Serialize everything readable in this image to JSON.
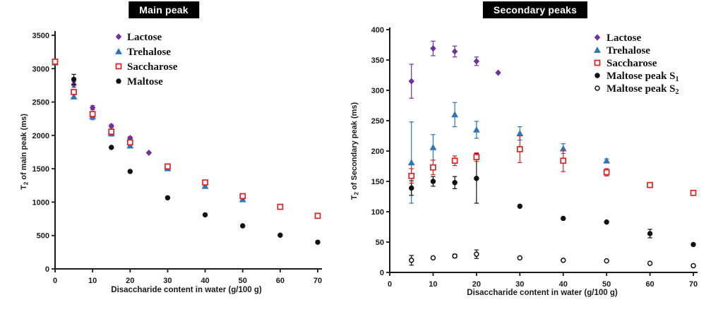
{
  "colors": {
    "lactose": "#7030a0",
    "trehalose": "#2e75b6",
    "saccharose": "#e02020",
    "maltose": "#111111",
    "axis": "#1a1a1a",
    "title_bg": "#000000",
    "title_fg": "#ffffff"
  },
  "chart_data": [
    {
      "type": "scatter",
      "id": "main-peak",
      "title": "Main peak",
      "xlabel": "Disaccharide content in water (g/100 g)",
      "ylabel": {
        "pre": "T",
        "sub": "2",
        "post": " of main peak (ms)"
      },
      "xlim": [
        0,
        70
      ],
      "ylim": [
        0,
        3500
      ],
      "xticks": [
        0,
        10,
        20,
        30,
        40,
        50,
        60,
        70
      ],
      "yticks": [
        0,
        500,
        1000,
        1500,
        2000,
        2500,
        3000,
        3500
      ],
      "legend_position": "upper-center-left",
      "grid": false,
      "series": [
        {
          "label": "Lactose",
          "label_sub": "",
          "marker": "diamond",
          "color": "lactose",
          "points": [
            {
              "x": 0,
              "y": 3100
            },
            {
              "x": 5,
              "y": 2760,
              "err": 40
            },
            {
              "x": 10,
              "y": 2415,
              "err": 30
            },
            {
              "x": 15,
              "y": 2140,
              "err": 25
            },
            {
              "x": 20,
              "y": 1960,
              "err": 20
            },
            {
              "x": 25,
              "y": 1740
            }
          ]
        },
        {
          "label": "Trehalose",
          "label_sub": "",
          "marker": "triangle",
          "color": "trehalose",
          "points": [
            {
              "x": 0,
              "y": 3090
            },
            {
              "x": 5,
              "y": 2580,
              "err": 30
            },
            {
              "x": 10,
              "y": 2285,
              "err": 50
            },
            {
              "x": 15,
              "y": 2030,
              "err": 40
            },
            {
              "x": 20,
              "y": 1845,
              "err": 25
            },
            {
              "x": 30,
              "y": 1505,
              "err": 15
            },
            {
              "x": 40,
              "y": 1240,
              "err": 15
            },
            {
              "x": 50,
              "y": 1040,
              "err": 15
            }
          ]
        },
        {
          "label": "Saccharose",
          "label_sub": "",
          "marker": "square-open",
          "color": "saccharose",
          "points": [
            {
              "x": 0,
              "y": 3105
            },
            {
              "x": 5,
              "y": 2650,
              "err": 25
            },
            {
              "x": 10,
              "y": 2320,
              "err": 30
            },
            {
              "x": 15,
              "y": 2055,
              "err": 25
            },
            {
              "x": 20,
              "y": 1895,
              "err": 20
            },
            {
              "x": 30,
              "y": 1535,
              "err": 10
            },
            {
              "x": 40,
              "y": 1295,
              "err": 10
            },
            {
              "x": 50,
              "y": 1090,
              "err": 10
            },
            {
              "x": 60,
              "y": 930
            },
            {
              "x": 70,
              "y": 795
            }
          ]
        },
        {
          "label": "Maltose",
          "label_sub": "",
          "marker": "circle",
          "color": "maltose",
          "points": [
            {
              "x": 5,
              "y": 2840,
              "err": 75
            },
            {
              "x": 15,
              "y": 1820
            },
            {
              "x": 20,
              "y": 1460
            },
            {
              "x": 30,
              "y": 1065
            },
            {
              "x": 40,
              "y": 810
            },
            {
              "x": 50,
              "y": 645
            },
            {
              "x": 60,
              "y": 505
            },
            {
              "x": 70,
              "y": 400
            }
          ]
        }
      ]
    },
    {
      "type": "scatter",
      "id": "secondary-peaks",
      "title": "Secondary peaks",
      "xlabel": "Disaccharide content in water (g/100 g)",
      "ylabel": {
        "pre": "T",
        "sub": "2",
        "post": " of Secondary peak (ms)"
      },
      "xlim": [
        0,
        70
      ],
      "ylim": [
        0,
        400
      ],
      "xticks": [
        0,
        10,
        20,
        30,
        40,
        50,
        60,
        70
      ],
      "yticks": [
        0,
        50,
        100,
        150,
        200,
        250,
        300,
        350,
        400
      ],
      "legend_position": "upper-right",
      "grid": false,
      "series": [
        {
          "label": "Lactose",
          "label_sub": "",
          "marker": "diamond",
          "color": "lactose",
          "points": [
            {
              "x": 5,
              "y": 315,
              "err": 28
            },
            {
              "x": 10,
              "y": 369,
              "err": 12
            },
            {
              "x": 15,
              "y": 364,
              "err": 9
            },
            {
              "x": 20,
              "y": 348,
              "err": 7
            },
            {
              "x": 25,
              "y": 329
            }
          ]
        },
        {
          "label": "Trehalose",
          "label_sub": "",
          "marker": "triangle",
          "color": "trehalose",
          "points": [
            {
              "x": 5,
              "y": 181,
              "err": 67
            },
            {
              "x": 10,
              "y": 206,
              "err": 21
            },
            {
              "x": 15,
              "y": 260,
              "err": 20
            },
            {
              "x": 20,
              "y": 235,
              "err": 14
            },
            {
              "x": 30,
              "y": 229,
              "err": 11
            },
            {
              "x": 40,
              "y": 204,
              "err": 8
            },
            {
              "x": 50,
              "y": 184,
              "err": 3
            }
          ]
        },
        {
          "label": "Saccharose",
          "label_sub": "",
          "marker": "square-open",
          "color": "saccharose",
          "points": [
            {
              "x": 5,
              "y": 159,
              "err": 12
            },
            {
              "x": 10,
              "y": 173,
              "err": 12
            },
            {
              "x": 15,
              "y": 184,
              "err": 8
            },
            {
              "x": 20,
              "y": 190,
              "err": 7
            },
            {
              "x": 30,
              "y": 203,
              "err": 22
            },
            {
              "x": 40,
              "y": 184,
              "err": 18
            },
            {
              "x": 50,
              "y": 165,
              "err": 6
            },
            {
              "x": 60,
              "y": 144
            },
            {
              "x": 70,
              "y": 131
            }
          ]
        },
        {
          "label": "Maltose peak S",
          "label_sub": "1",
          "marker": "circle",
          "color": "maltose",
          "points": [
            {
              "x": 5,
              "y": 139,
              "err": 12
            },
            {
              "x": 10,
              "y": 150,
              "err": 8
            },
            {
              "x": 15,
              "y": 148,
              "err": 10
            },
            {
              "x": 20,
              "y": 155,
              "err": 41
            },
            {
              "x": 30,
              "y": 109
            },
            {
              "x": 40,
              "y": 89
            },
            {
              "x": 50,
              "y": 83
            },
            {
              "x": 60,
              "y": 64,
              "err": 7
            },
            {
              "x": 70,
              "y": 46
            }
          ]
        },
        {
          "label": "Maltose peak S",
          "label_sub": "2",
          "marker": "circle-open",
          "color": "maltose",
          "points": [
            {
              "x": 5,
              "y": 20,
              "err": 8
            },
            {
              "x": 10,
              "y": 24
            },
            {
              "x": 15,
              "y": 27,
              "err": 3
            },
            {
              "x": 20,
              "y": 30,
              "err": 7
            },
            {
              "x": 30,
              "y": 24
            },
            {
              "x": 40,
              "y": 20
            },
            {
              "x": 50,
              "y": 19
            },
            {
              "x": 60,
              "y": 15
            },
            {
              "x": 70,
              "y": 11
            }
          ]
        }
      ]
    }
  ]
}
